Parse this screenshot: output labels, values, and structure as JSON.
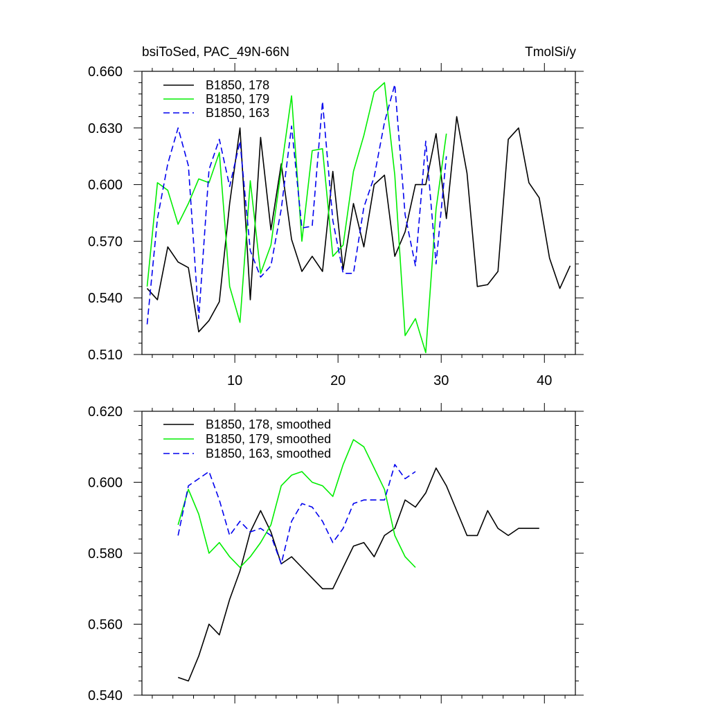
{
  "chart_data": [
    {
      "type": "line",
      "title_left": "bsiToSed, PAC_49N-66N",
      "title_right": "TmolSi/y",
      "xlabel": "",
      "ylabel": "",
      "xlim": [
        1,
        43
      ],
      "ylim": [
        0.51,
        0.66
      ],
      "xticks": [
        10,
        20,
        30,
        40
      ],
      "xtick_labels": [
        "10",
        "20",
        "30",
        "40"
      ],
      "yticks": [
        0.51,
        0.54,
        0.57,
        0.6,
        0.63,
        0.66
      ],
      "ytick_labels": [
        "0.510",
        "0.540",
        "0.570",
        "0.600",
        "0.630",
        "0.660"
      ],
      "legend_position": "top-left",
      "series": [
        {
          "name": "B1850, 178",
          "color": "#000000",
          "dash": "solid",
          "x": [
            1.5,
            2.5,
            3.5,
            4.5,
            5.5,
            6.5,
            7.5,
            8.5,
            9.5,
            10.5,
            11.5,
            12.5,
            13.5,
            14.5,
            15.5,
            16.5,
            17.5,
            18.5,
            19.5,
            20.5,
            21.5,
            22.5,
            23.5,
            24.5,
            25.5,
            26.5,
            27.5,
            28.5,
            29.5,
            30.5,
            31.5,
            32.5,
            33.5,
            34.5,
            35.5,
            36.5,
            37.5,
            38.5,
            39.5,
            40.5,
            41.5,
            42.5
          ],
          "values": [
            0.545,
            0.539,
            0.567,
            0.559,
            0.556,
            0.522,
            0.528,
            0.538,
            0.59,
            0.63,
            0.539,
            0.625,
            0.576,
            0.611,
            0.571,
            0.554,
            0.562,
            0.554,
            0.607,
            0.555,
            0.59,
            0.567,
            0.6,
            0.605,
            0.562,
            0.575,
            0.6,
            0.6,
            0.627,
            0.582,
            0.636,
            0.606,
            0.546,
            0.547,
            0.554,
            0.624,
            0.63,
            0.601,
            0.593,
            0.561,
            0.545,
            0.557
          ]
        },
        {
          "name": "B1850, 179",
          "color": "#00ee00",
          "dash": "solid",
          "x": [
            1.5,
            2.5,
            3.5,
            4.5,
            5.5,
            6.5,
            7.5,
            8.5,
            9.5,
            10.5,
            11.5,
            12.5,
            13.5,
            14.5,
            15.5,
            16.5,
            17.5,
            18.5,
            19.5,
            20.5,
            21.5,
            22.5,
            23.5,
            24.5,
            25.5,
            26.5,
            27.5,
            28.5,
            29.5,
            30.5
          ],
          "values": [
            0.546,
            0.601,
            0.597,
            0.579,
            0.59,
            0.603,
            0.601,
            0.617,
            0.546,
            0.527,
            0.602,
            0.553,
            0.568,
            0.608,
            0.647,
            0.57,
            0.618,
            0.619,
            0.562,
            0.568,
            0.607,
            0.626,
            0.649,
            0.654,
            0.605,
            0.52,
            0.529,
            0.511,
            0.587,
            0.627
          ]
        },
        {
          "name": "B1850, 163",
          "color": "#0000ee",
          "dash": "dashed",
          "x": [
            1.5,
            2.5,
            3.5,
            4.5,
            5.5,
            6.5,
            7.5,
            8.5,
            9.5,
            10.5,
            11.5,
            12.5,
            13.5,
            14.5,
            15.5,
            16.5,
            17.5,
            18.5,
            19.5,
            20.5,
            21.5,
            22.5,
            23.5,
            24.5,
            25.5,
            26.5,
            27.5,
            28.5,
            29.5,
            30.5
          ],
          "values": [
            0.526,
            0.582,
            0.611,
            0.63,
            0.61,
            0.529,
            0.608,
            0.624,
            0.599,
            0.623,
            0.565,
            0.551,
            0.557,
            0.587,
            0.631,
            0.577,
            0.578,
            0.644,
            0.581,
            0.553,
            0.553,
            0.588,
            0.604,
            0.633,
            0.653,
            0.584,
            0.557,
            0.623,
            0.558,
            0.615
          ]
        }
      ]
    },
    {
      "type": "line",
      "xlim": [
        1,
        43
      ],
      "ylim": [
        0.54,
        0.62
      ],
      "xticks": [
        10,
        20,
        30,
        40
      ],
      "xtick_labels": [
        "",
        "",
        "",
        ""
      ],
      "yticks": [
        0.54,
        0.56,
        0.58,
        0.6,
        0.62
      ],
      "ytick_labels": [
        "0.540",
        "0.560",
        "0.580",
        "0.600",
        "0.620"
      ],
      "legend_position": "top-left",
      "series": [
        {
          "name": "B1850, 178, smoothed",
          "color": "#000000",
          "dash": "solid",
          "x": [
            4.5,
            5.5,
            6.5,
            7.5,
            8.5,
            9.5,
            10.5,
            11.5,
            12.5,
            13.5,
            14.5,
            15.5,
            16.5,
            17.5,
            18.5,
            19.5,
            20.5,
            21.5,
            22.5,
            23.5,
            24.5,
            25.5,
            26.5,
            27.5,
            28.5,
            29.5,
            30.5,
            31.5,
            32.5,
            33.5,
            34.5,
            35.5,
            36.5,
            37.5,
            38.5,
            39.5
          ],
          "values": [
            0.545,
            0.544,
            0.551,
            0.56,
            0.557,
            0.567,
            0.575,
            0.586,
            0.592,
            0.586,
            0.577,
            0.579,
            0.576,
            0.573,
            0.57,
            0.57,
            0.576,
            0.582,
            0.583,
            0.579,
            0.585,
            0.587,
            0.595,
            0.593,
            0.597,
            0.604,
            0.599,
            0.592,
            0.585,
            0.585,
            0.592,
            0.587,
            0.585,
            0.587,
            0.587,
            0.587
          ]
        },
        {
          "name": "B1850, 179, smoothed",
          "color": "#00ee00",
          "dash": "solid",
          "x": [
            4.5,
            5.5,
            6.5,
            7.5,
            8.5,
            9.5,
            10.5,
            11.5,
            12.5,
            13.5,
            14.5,
            15.5,
            16.5,
            17.5,
            18.5,
            19.5,
            20.5,
            21.5,
            22.5,
            23.5,
            24.5,
            25.5,
            26.5,
            27.5
          ],
          "values": [
            0.588,
            0.598,
            0.591,
            0.58,
            0.583,
            0.579,
            0.576,
            0.579,
            0.583,
            0.588,
            0.599,
            0.602,
            0.603,
            0.6,
            0.599,
            0.596,
            0.605,
            0.612,
            0.61,
            0.604,
            0.598,
            0.585,
            0.579,
            0.576
          ]
        },
        {
          "name": "B1850, 163, smoothed",
          "color": "#0000ee",
          "dash": "dashed",
          "x": [
            4.5,
            5.5,
            6.5,
            7.5,
            8.5,
            9.5,
            10.5,
            11.5,
            12.5,
            13.5,
            14.5,
            15.5,
            16.5,
            17.5,
            18.5,
            19.5,
            20.5,
            21.5,
            22.5,
            23.5,
            24.5,
            25.5,
            26.5,
            27.5
          ],
          "values": [
            0.585,
            0.599,
            0.601,
            0.603,
            0.595,
            0.585,
            0.589,
            0.586,
            0.587,
            0.585,
            0.577,
            0.589,
            0.594,
            0.593,
            0.589,
            0.583,
            0.587,
            0.594,
            0.595,
            0.595,
            0.595,
            0.605,
            0.601,
            0.603
          ]
        }
      ]
    }
  ]
}
